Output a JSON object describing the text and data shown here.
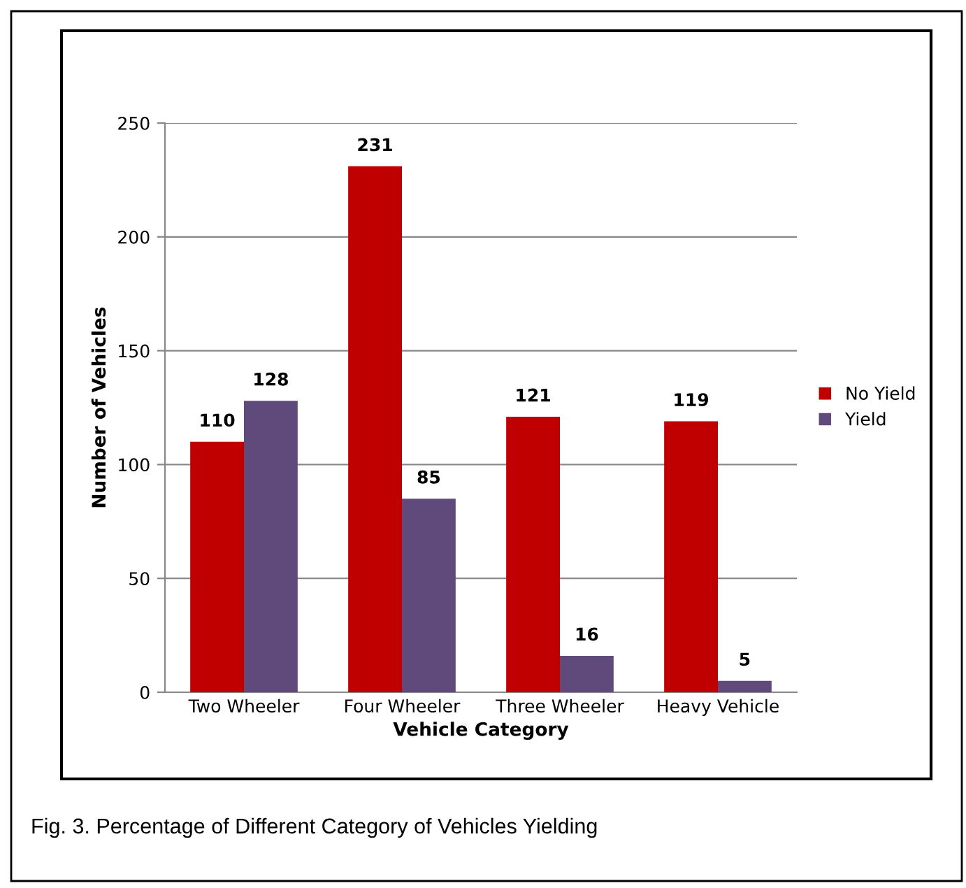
{
  "chart_data": {
    "type": "bar",
    "xlabel": "Vehicle Category",
    "ylabel": "Number of Vehicles",
    "categories": [
      "Two Wheeler",
      "Four Wheeler",
      "Three Wheeler",
      "Heavy Vehicle"
    ],
    "series": [
      {
        "name": "No Yield",
        "color": "#c00000",
        "values": [
          110,
          231,
          121,
          119
        ]
      },
      {
        "name": "Yield",
        "color": "#604a7b",
        "values": [
          128,
          85,
          16,
          5
        ]
      }
    ],
    "ylim": [
      0,
      250
    ],
    "yticks": [
      0,
      50,
      100,
      150,
      200,
      250
    ],
    "grid": "y",
    "legend": "right",
    "data_labels": true,
    "annotations": [
      "Fig. 3. Percentage of Different Category of Vehicles Yielding"
    ]
  }
}
